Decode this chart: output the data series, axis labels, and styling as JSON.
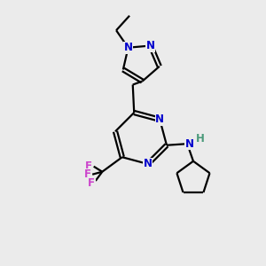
{
  "bg_color": "#ebebeb",
  "bond_color": "#000000",
  "N_color": "#0000cc",
  "F_color": "#cc44cc",
  "NH_color": "#4a9a7a",
  "line_width": 1.6,
  "fig_size": [
    3.0,
    3.0
  ],
  "dpi": 100,
  "xlim": [
    0,
    10
  ],
  "ylim": [
    0,
    10
  ]
}
